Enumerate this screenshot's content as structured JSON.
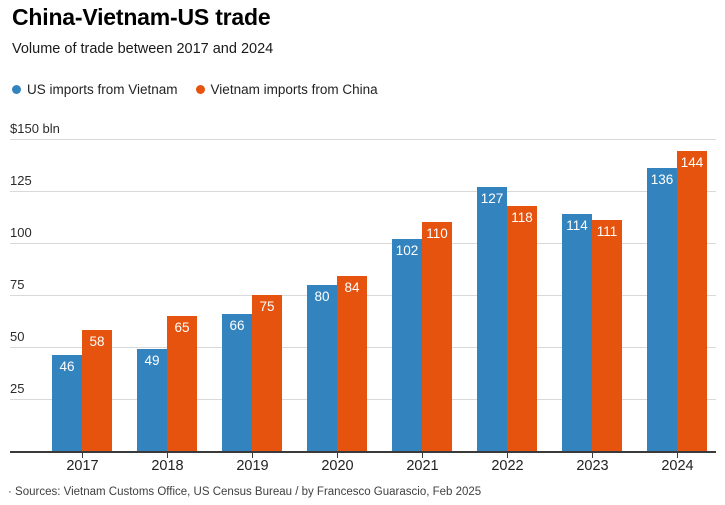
{
  "header": {
    "title": "China-Vietnam-US trade",
    "subtitle": "Volume of trade between 2017 and 2024"
  },
  "legend": [
    {
      "label": "US imports from Vietnam",
      "color": "#3383bf"
    },
    {
      "label": "Vietnam imports from China",
      "color": "#e5530e"
    }
  ],
  "footer": {
    "source": "· Sources: Vietnam Customs Office, US Census Bureau / by Francesco Guarascio, Feb 2025"
  },
  "colors": {
    "blue_series": "#3383bf",
    "orange_series": "#e5530e",
    "gridline": "#d9d9d9",
    "axis": "#3a3a3a",
    "bar_value_text": "#ffffff",
    "background": "#ffffff"
  },
  "chart_data": {
    "type": "bar",
    "title": "China-Vietnam-US trade",
    "subtitle": "Volume of trade between 2017 and 2024",
    "unit": "$ bln",
    "categories": [
      "2017",
      "2018",
      "2019",
      "2020",
      "2021",
      "2022",
      "2023",
      "2024"
    ],
    "series": [
      {
        "name": "US imports from Vietnam",
        "color": "#3383bf",
        "values": [
          46,
          49,
          66,
          80,
          102,
          127,
          114,
          136
        ]
      },
      {
        "name": "Vietnam imports from China",
        "color": "#e5530e",
        "values": [
          58,
          65,
          75,
          84,
          110,
          118,
          111,
          144
        ]
      }
    ],
    "ylim": [
      0,
      150
    ],
    "yticks": [
      {
        "value": 150,
        "label": "$150 bln"
      },
      {
        "value": 125,
        "label": "125"
      },
      {
        "value": 100,
        "label": "100"
      },
      {
        "value": 75,
        "label": "75"
      },
      {
        "value": 50,
        "label": "50"
      },
      {
        "value": 25,
        "label": "25"
      }
    ],
    "grid": true,
    "legend_position": "top",
    "value_labels": true
  }
}
